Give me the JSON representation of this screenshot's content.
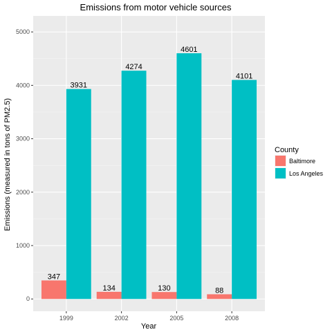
{
  "chart_data": {
    "type": "bar",
    "title": "Emissions from motor vehicle sources",
    "xlabel": "Year",
    "ylabel": "Emissions (measured in tons of PM2.5)",
    "categories": [
      "1999",
      "2002",
      "2005",
      "2008"
    ],
    "series": [
      {
        "name": "Baltimore",
        "color": "#f8766d",
        "values": [
          347,
          134,
          130,
          88
        ]
      },
      {
        "name": "Los Angeles",
        "color": "#00bfc4",
        "values": [
          3931,
          4274,
          4601,
          4101
        ]
      }
    ],
    "value_labels": [
      [
        "347",
        "134",
        "130",
        "88"
      ],
      [
        "3931",
        "4274",
        "4601",
        "4101"
      ]
    ],
    "y_ticks": [
      0,
      1000,
      2000,
      3000,
      4000,
      5000
    ],
    "y_tick_labels": [
      "0",
      "1000",
      "2000",
      "3000",
      "4000",
      "5000"
    ],
    "ylim": [
      -230,
      5300
    ],
    "grid": true,
    "legend": {
      "title": "County",
      "position": "right"
    },
    "panel_color": "#ebebeb"
  }
}
